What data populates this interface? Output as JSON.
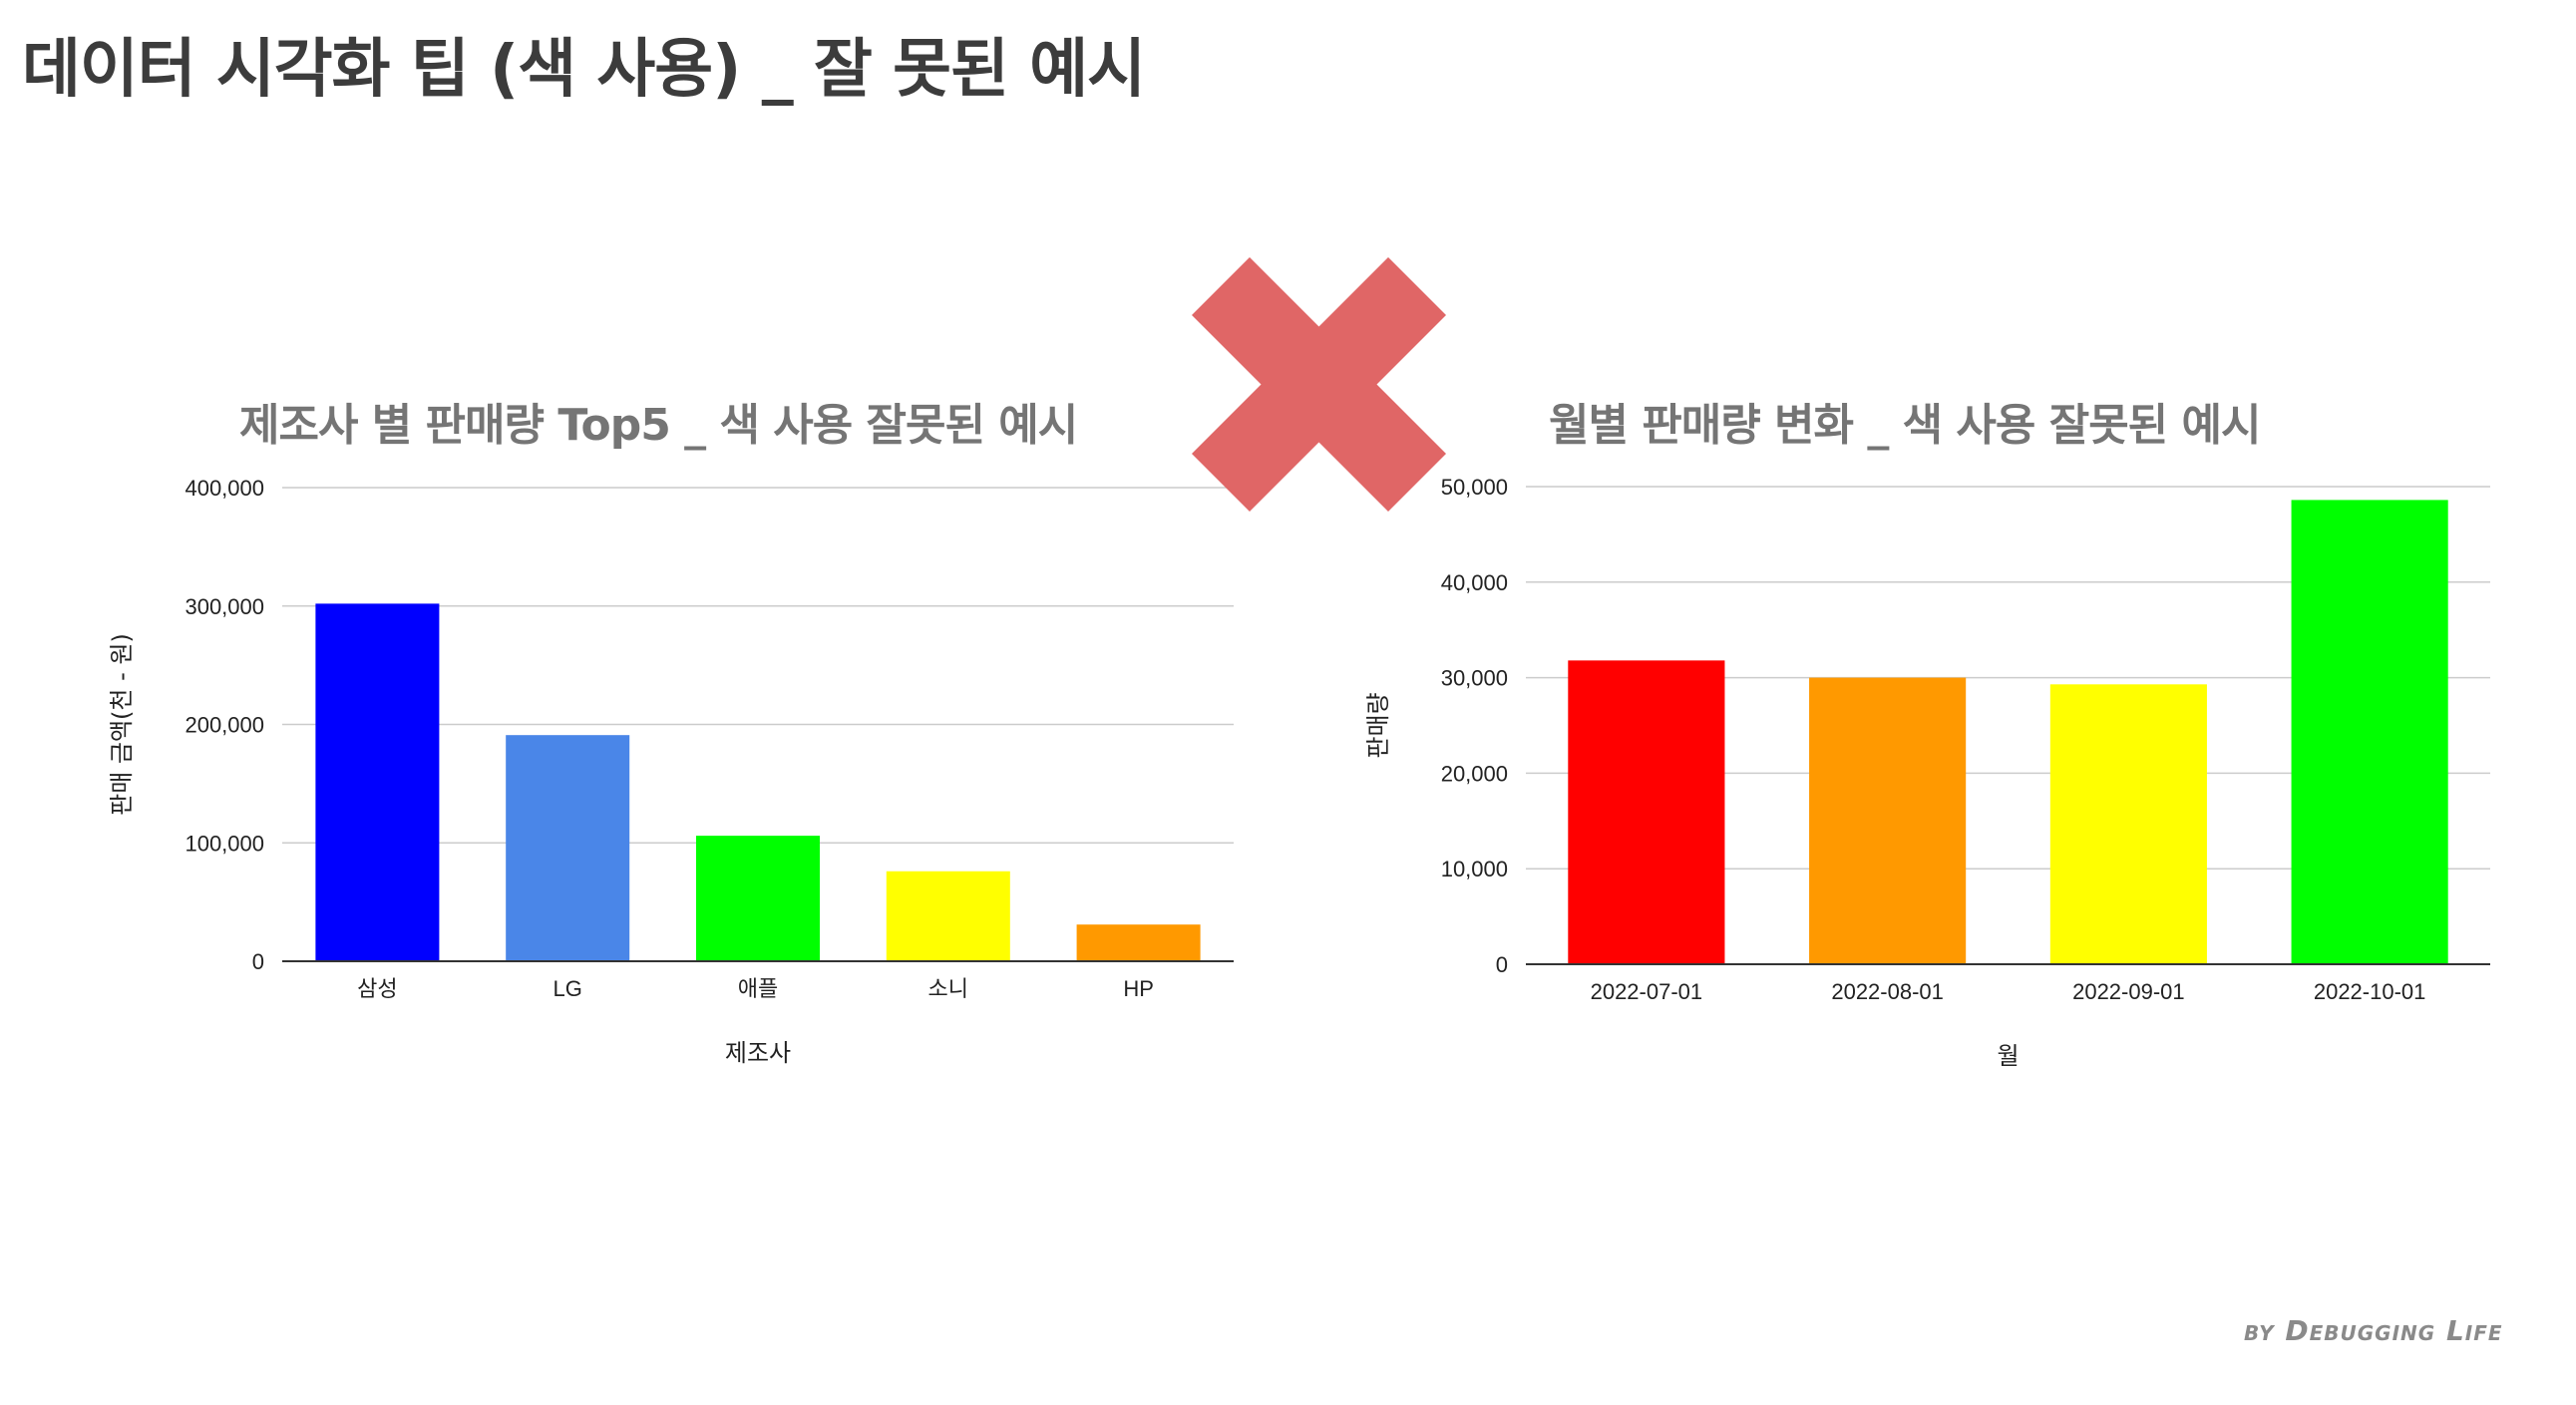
{
  "page": {
    "title": "데이터 시각화 팁 (색 사용) _ 잘 못된 예시",
    "credit": "by Debugging Life"
  },
  "icons": {
    "wrong_mark": "x-cross-icon",
    "wrong_mark_color": "#e06666"
  },
  "chart_data": [
    {
      "type": "bar",
      "title": "제조사 별 판매량 Top5 _ 색 사용 잘못된 예시",
      "xlabel": "제조사",
      "ylabel": "판매 금액(천 - 원)",
      "categories": [
        "삼성",
        "LG",
        "애플",
        "소니",
        "HP"
      ],
      "values": [
        302000,
        191000,
        106000,
        76000,
        31000
      ],
      "colors": [
        "#0000ff",
        "#4a86e8",
        "#00ff00",
        "#ffff00",
        "#ff9900"
      ],
      "ylim": [
        0,
        400000
      ],
      "yticks": [
        0,
        100000,
        200000,
        300000,
        400000
      ],
      "ytick_labels": [
        "0",
        "100,000",
        "200,000",
        "300,000",
        "400,000"
      ],
      "grid": true
    },
    {
      "type": "bar",
      "title": "월별 판매량 변화 _ 색 사용 잘못된 예시",
      "xlabel": "월",
      "ylabel": "판매량",
      "categories": [
        "2022-07-01",
        "2022-08-01",
        "2022-09-01",
        "2022-10-01"
      ],
      "values": [
        31800,
        30000,
        29300,
        48600
      ],
      "colors": [
        "#ff0000",
        "#ff9900",
        "#ffff00",
        "#00ff00"
      ],
      "ylim": [
        0,
        50000
      ],
      "yticks": [
        0,
        10000,
        20000,
        30000,
        40000,
        50000
      ],
      "ytick_labels": [
        "0",
        "10,000",
        "20,000",
        "30,000",
        "40,000",
        "50,000"
      ],
      "grid": true
    }
  ]
}
